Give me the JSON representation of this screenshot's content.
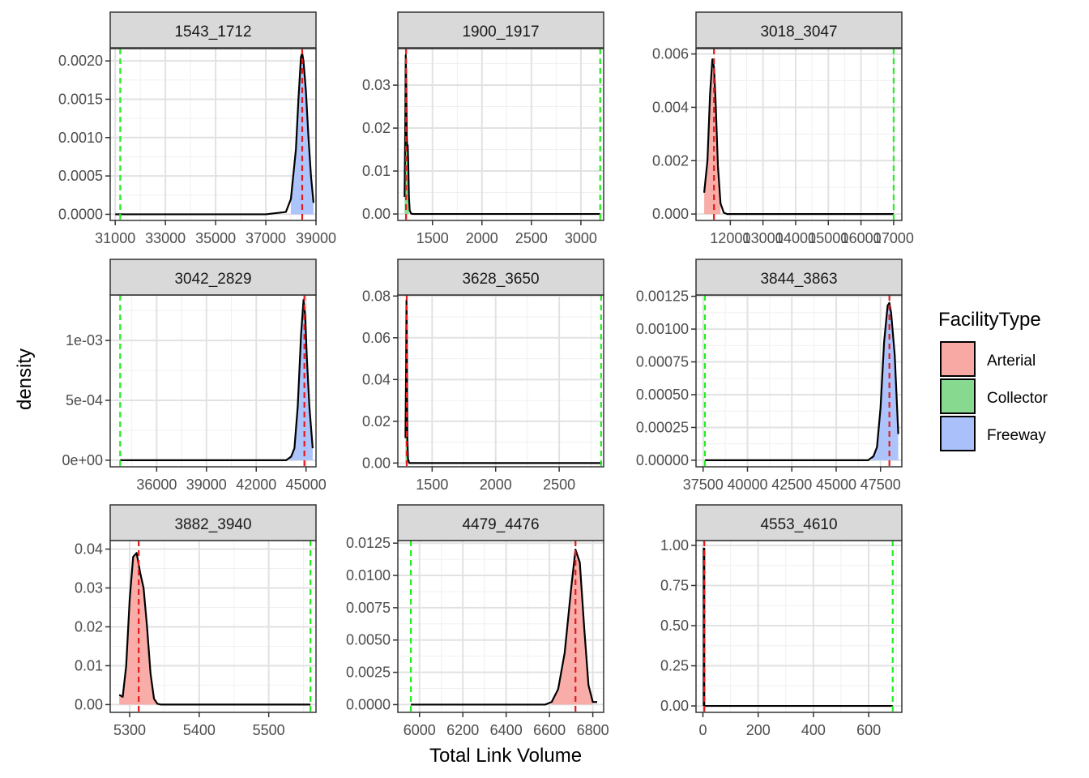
{
  "chart_data": {
    "type": "area",
    "xlabel": "Total Link Volume",
    "ylabel": "density",
    "legend": {
      "title": "FacilityType",
      "placement": "right",
      "entries": [
        {
          "name": "Arterial",
          "color": "#f8a9a4"
        },
        {
          "name": "Collector",
          "color": "#86d98f"
        },
        {
          "name": "Freeway",
          "color": "#a9c0fb"
        }
      ]
    },
    "reference_line_colors": {
      "red": "#e41a1c",
      "green": "#22ee22"
    },
    "panels": [
      {
        "label": "1543_1712",
        "facility": "Freeway",
        "xlim": [
          30800,
          39000
        ],
        "ylim": [
          -8e-05,
          0.00216
        ],
        "xticks": [
          31000,
          33000,
          35000,
          37000,
          39000
        ],
        "yticks": [
          0,
          0.0005,
          0.001,
          0.0015,
          0.002
        ],
        "ytick_labels": [
          "0.0000",
          "0.0005",
          "0.0010",
          "0.0015",
          "0.0020"
        ],
        "red_line": 38450,
        "green_line": 31200,
        "density": {
          "x": [
            31000,
            37000,
            37800,
            38000,
            38200,
            38300,
            38400,
            38450,
            38500,
            38600,
            38700,
            38800,
            38900
          ],
          "y": [
            0,
            0,
            3e-05,
            0.0002,
            0.00085,
            0.0015,
            0.00205,
            0.0021,
            0.002,
            0.0016,
            0.001,
            0.0005,
            0.00015
          ]
        },
        "fill_x": [
          38000,
          38900
        ]
      },
      {
        "label": "1900_1917",
        "facility": "Collector",
        "xlim": [
          1150,
          3230
        ],
        "ylim": [
          -0.0015,
          0.0385
        ],
        "xticks": [
          1500,
          2000,
          2500,
          3000
        ],
        "yticks": [
          0,
          0.01,
          0.02,
          0.03
        ],
        "ytick_labels": [
          "0.00",
          "0.01",
          "0.02",
          "0.03"
        ],
        "red_line": 1233,
        "green_line": 3195,
        "density": {
          "x": [
            1218,
            1225,
            1230,
            1235,
            1240,
            1245,
            1250,
            1255,
            1262,
            1270,
            1285,
            1300,
            3195
          ],
          "y": [
            0.004,
            0.02,
            0.037,
            0.03,
            0.018,
            0.015,
            0.016,
            0.012,
            0.004,
            0.0008,
            0.0001,
            0,
            0
          ]
        },
        "fill_x": [
          1218,
          1262
        ]
      },
      {
        "label": "3018_3047",
        "facility": "Arterial",
        "xlim": [
          10950,
          17250
        ],
        "ylim": [
          -0.00024,
          0.0062
        ],
        "xticks": [
          12000,
          13000,
          14000,
          15000,
          16000,
          17000
        ],
        "yticks": [
          0,
          0.002,
          0.004,
          0.006
        ],
        "ytick_labels": [
          "0.000",
          "0.002",
          "0.004",
          "0.006"
        ],
        "red_line": 11500,
        "green_line": 17000,
        "density": {
          "x": [
            11200,
            11300,
            11380,
            11450,
            11500,
            11550,
            11620,
            11700,
            11800,
            11900,
            12000,
            17000
          ],
          "y": [
            0.0008,
            0.002,
            0.0045,
            0.0058,
            0.0055,
            0.0042,
            0.0018,
            0.0004,
            5e-05,
            0,
            0,
            0
          ]
        },
        "fill_x": [
          11200,
          11700
        ]
      },
      {
        "label": "3042_2829",
        "facility": "Freeway",
        "xlim": [
          33200,
          45600
        ],
        "ylim": [
          -5.5e-05,
          0.00138
        ],
        "xticks": [
          36000,
          39000,
          42000,
          45000
        ],
        "yticks": [
          0,
          0.0005,
          0.001
        ],
        "ytick_labels": [
          "0e+00",
          "5e-04",
          "1e-03"
        ],
        "red_line": 44900,
        "green_line": 33800,
        "density": {
          "x": [
            33800,
            43800,
            44100,
            44300,
            44500,
            44700,
            44850,
            44950,
            45050,
            45200,
            45400
          ],
          "y": [
            0,
            0,
            3e-05,
            0.0001,
            0.00045,
            0.00105,
            0.00134,
            0.0012,
            0.00085,
            0.00045,
            0.0001
          ]
        },
        "fill_x": [
          44000,
          45400
        ]
      },
      {
        "label": "3628_3650",
        "facility": "Collector",
        "xlim": [
          1230,
          2850
        ],
        "ylim": [
          -0.0018,
          0.0805
        ],
        "xticks": [
          1500,
          2000,
          2500
        ],
        "yticks": [
          0,
          0.02,
          0.04,
          0.06,
          0.08
        ],
        "ytick_labels": [
          "0.00",
          "0.02",
          "0.04",
          "0.06",
          "0.08"
        ],
        "red_line": 1300,
        "green_line": 2830,
        "density": {
          "x": [
            1290,
            1295,
            1298,
            1300,
            1302,
            1305,
            1310,
            1320,
            2830
          ],
          "y": [
            0.012,
            0.045,
            0.078,
            0.07,
            0.045,
            0.012,
            0.002,
            0,
            0
          ]
        },
        "fill_x": [
          1290,
          1310
        ]
      },
      {
        "label": "3844_3863",
        "facility": "Freeway",
        "xlim": [
          37100,
          48700
        ],
        "ylim": [
          -5e-05,
          0.00126
        ],
        "xticks": [
          37500,
          40000,
          42500,
          45000,
          47500
        ],
        "yticks": [
          0,
          0.00025,
          0.0005,
          0.00075,
          0.001,
          0.00125
        ],
        "ytick_labels": [
          "0.00000",
          "0.00025",
          "0.00050",
          "0.00075",
          "0.00100",
          "0.00125"
        ],
        "red_line": 48000,
        "green_line": 37600,
        "density": {
          "x": [
            37600,
            46800,
            47100,
            47300,
            47500,
            47700,
            47900,
            48000,
            48100,
            48300,
            48500
          ],
          "y": [
            0,
            0,
            3e-05,
            0.0001,
            0.0004,
            0.0009,
            0.00118,
            0.0012,
            0.00112,
            0.0008,
            0.0002
          ]
        },
        "fill_x": [
          47000,
          48500
        ]
      },
      {
        "label": "3882_3940",
        "facility": "Arterial",
        "xlim": [
          5272,
          5568
        ],
        "ylim": [
          -0.002,
          0.0422
        ],
        "xticks": [
          5300,
          5400,
          5500
        ],
        "yticks": [
          0,
          0.01,
          0.02,
          0.03,
          0.04
        ],
        "ytick_labels": [
          "0.00",
          "0.01",
          "0.02",
          "0.03",
          "0.04"
        ],
        "red_line": 5313,
        "green_line": 5560,
        "density": {
          "x": [
            5285,
            5290,
            5295,
            5300,
            5305,
            5310,
            5315,
            5320,
            5325,
            5330,
            5335,
            5340,
            5345,
            5560
          ],
          "y": [
            0.0025,
            0.002,
            0.01,
            0.027,
            0.038,
            0.039,
            0.034,
            0.03,
            0.02,
            0.008,
            0.0015,
            0.0002,
            0,
            0
          ]
        },
        "fill_x": [
          5285,
          5345
        ]
      },
      {
        "label": "4479_4476",
        "facility": "Arterial",
        "xlim": [
          5900,
          6850
        ],
        "ylim": [
          -0.0006,
          0.0127
        ],
        "xticks": [
          6000,
          6200,
          6400,
          6600,
          6800
        ],
        "yticks": [
          0,
          0.0025,
          0.005,
          0.0075,
          0.01,
          0.0125
        ],
        "ytick_labels": [
          "0.0000",
          "0.0025",
          "0.0050",
          "0.0075",
          "0.0100",
          "0.0125"
        ],
        "red_line": 6720,
        "green_line": 5960,
        "density": {
          "x": [
            5960,
            6580,
            6610,
            6640,
            6670,
            6700,
            6720,
            6740,
            6760,
            6780,
            6800,
            6820
          ],
          "y": [
            0,
            0,
            0.0002,
            0.0012,
            0.004,
            0.009,
            0.012,
            0.011,
            0.006,
            0.0015,
            0.0002,
            0.0002
          ]
        },
        "fill_x": [
          6610,
          6800
        ]
      },
      {
        "label": "4553_4610",
        "facility": "Arterial",
        "xlim": [
          -25,
          720
        ],
        "ylim": [
          -0.04,
          1.03
        ],
        "xticks": [
          0,
          200,
          400,
          600
        ],
        "yticks": [
          0,
          0.25,
          0.5,
          0.75,
          1.0
        ],
        "ytick_labels": [
          "0.00",
          "0.25",
          "0.50",
          "0.75",
          "1.00"
        ],
        "red_line": 5,
        "green_line": 687,
        "density": {
          "x": [
            3,
            3,
            5,
            5,
            687
          ],
          "y": [
            0,
            0.98,
            0.98,
            0,
            0
          ]
        },
        "fill_x": [
          3,
          5
        ]
      }
    ]
  }
}
